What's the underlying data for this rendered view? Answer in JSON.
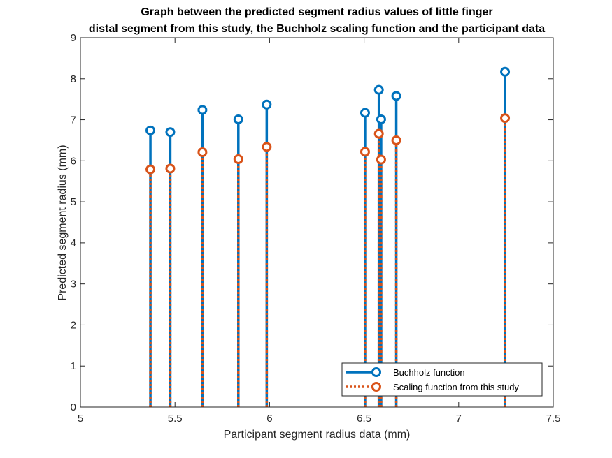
{
  "chart_data": {
    "type": "stem",
    "title": [
      "Graph between the predicted segment radius values of little finger",
      "distal segment from this study, the Buchholz scaling function and the participant data"
    ],
    "xlabel": "Participant segment radius data (mm)",
    "ylabel": "Predicted segment radius (mm)",
    "xlim": [
      5,
      7.5
    ],
    "ylim": [
      0,
      9
    ],
    "xticks": [
      5,
      5.5,
      6,
      6.5,
      7,
      7.5
    ],
    "xtick_labels": [
      "5",
      "5.5",
      "6",
      "6.5",
      "7",
      "7.5"
    ],
    "yticks": [
      0,
      1,
      2,
      3,
      4,
      5,
      6,
      7,
      8,
      9
    ],
    "ytick_labels": [
      "0",
      "1",
      "2",
      "3",
      "4",
      "5",
      "6",
      "7",
      "8",
      "9"
    ],
    "grid": false,
    "legend_position": "bottom-right",
    "x": [
      5.37,
      5.475,
      5.645,
      5.835,
      5.985,
      6.505,
      6.578,
      6.59,
      6.67,
      7.245
    ],
    "series": [
      {
        "name": "Buchholz function",
        "color": "#0072BD",
        "line_style": "solid",
        "marker": "circle",
        "values": [
          6.74,
          6.7,
          7.24,
          7.01,
          7.37,
          7.17,
          7.73,
          7.01,
          7.58,
          8.17
        ]
      },
      {
        "name": "Scaling function from this study",
        "color": "#D95319",
        "line_style": "dotted",
        "marker": "circle",
        "values": [
          5.79,
          5.81,
          6.21,
          6.04,
          6.34,
          6.22,
          6.66,
          6.03,
          6.5,
          7.04
        ]
      }
    ]
  }
}
